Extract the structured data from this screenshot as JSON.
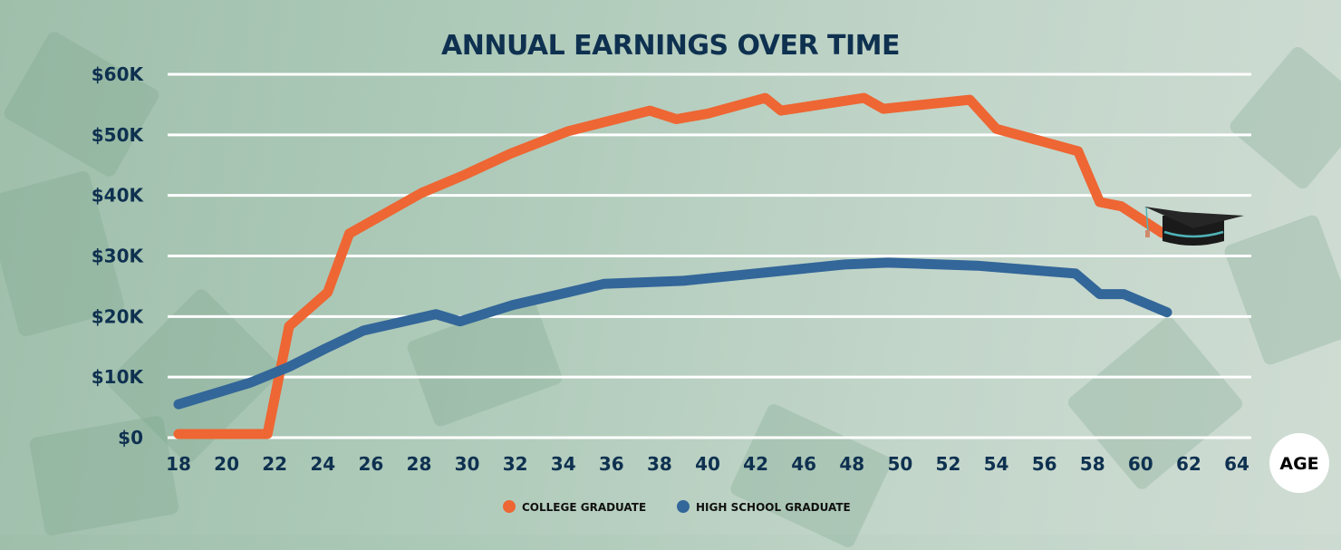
{
  "chart_data": {
    "type": "line",
    "title": "ANNUAL EARNINGS OVER TIME",
    "xlabel": "AGE",
    "ylabel": "",
    "ylim": [
      0,
      60000
    ],
    "y_ticks": [
      {
        "value": 0,
        "label": "$0"
      },
      {
        "value": 10000,
        "label": "$10K"
      },
      {
        "value": 20000,
        "label": "$20K"
      },
      {
        "value": 30000,
        "label": "$30K"
      },
      {
        "value": 40000,
        "label": "$40K"
      },
      {
        "value": 50000,
        "label": "$50K"
      },
      {
        "value": 60000,
        "label": "$60K"
      }
    ],
    "x_ticks": [
      "18",
      "20",
      "22",
      "24",
      "26",
      "28",
      "30",
      "32",
      "34",
      "36",
      "38",
      "40",
      "42",
      "46",
      "48",
      "50",
      "52",
      "54",
      "56",
      "58",
      "60",
      "62",
      "64"
    ],
    "grid": "horizontal",
    "legend_position": "bottom",
    "series": [
      {
        "name": "COLLEGE GRADUATE",
        "color": "#ee6633",
        "x": [
          18,
          21.7,
          22.6,
          24.2,
          25.1,
          28.1,
          29.9,
          31.8,
          34.2,
          37.6,
          38.7,
          40.0,
          42.8,
          44.1,
          48.5,
          49.3,
          52.9,
          54.0,
          57.4,
          58.3,
          59.2,
          60.9
        ],
        "y": [
          600,
          600,
          18400,
          24000,
          33700,
          40400,
          43400,
          46900,
          50600,
          54000,
          52600,
          53500,
          56100,
          54000,
          56100,
          54300,
          55800,
          51000,
          47300,
          38900,
          38200,
          33800
        ]
      },
      {
        "name": "HIGH SCHOOL GRADUATE",
        "color": "#336699",
        "x": [
          18,
          21.0,
          22.6,
          24.1,
          25.7,
          28.7,
          29.7,
          31.9,
          34.2,
          35.7,
          39.0,
          40.0,
          47.7,
          49.5,
          53.2,
          57.3,
          58.3,
          59.3,
          61.1
        ],
        "y": [
          5500,
          9100,
          11700,
          14700,
          17700,
          20400,
          19200,
          21900,
          24000,
          25400,
          25900,
          26300,
          28600,
          28900,
          28400,
          27100,
          23700,
          23700,
          20700
        ]
      }
    ]
  },
  "icons": {
    "end_marker": "graduation-cap-icon"
  }
}
